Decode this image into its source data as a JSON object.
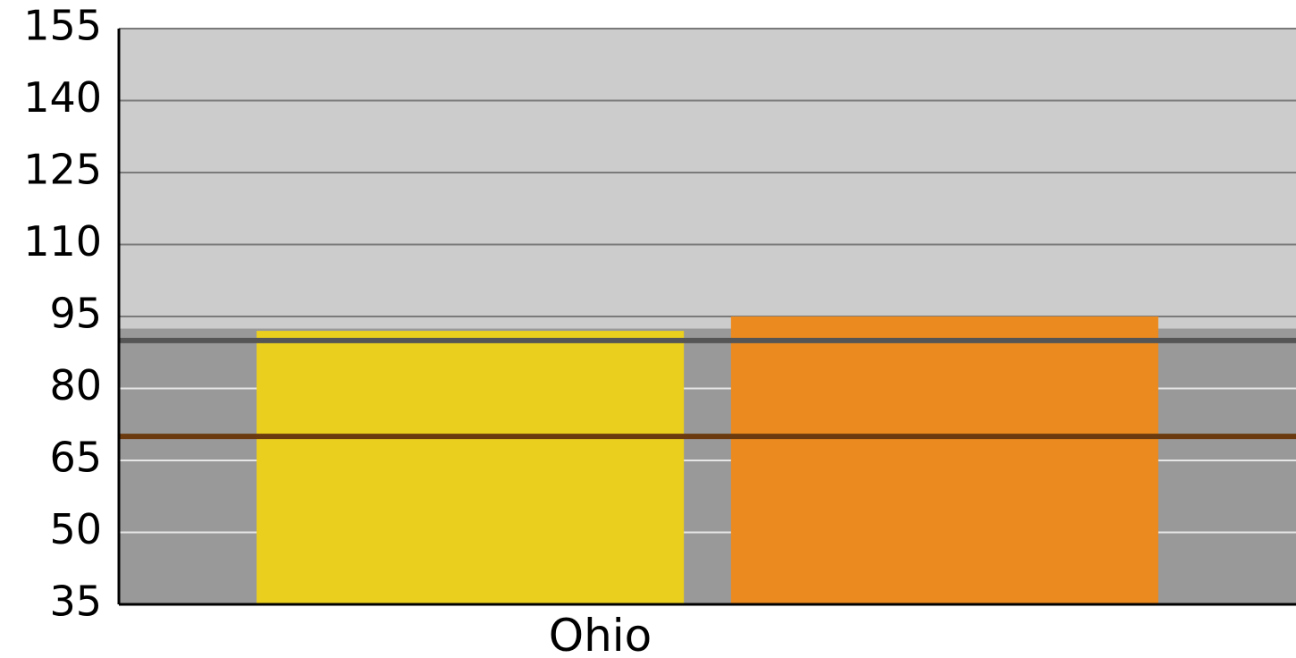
{
  "chart_data": {
    "type": "bar",
    "categories": [
      "Ohio"
    ],
    "series": [
      {
        "values": [
          92
        ],
        "color": "#EBCF1F"
      },
      {
        "values": [
          95
        ],
        "color": "#EB8A1F"
      }
    ],
    "ylim": [
      35,
      155
    ],
    "y_ticks": [
      "35",
      "50",
      "65",
      "80",
      "95",
      "110",
      "125",
      "140",
      "155"
    ],
    "background_bands": [
      {
        "from": 35,
        "to": 92.5,
        "color": "#999999"
      },
      {
        "from": 92.5,
        "to": 155,
        "color": "#CCCCCC"
      }
    ],
    "reference_lines": [
      {
        "value": 90,
        "color": "#555555"
      },
      {
        "value": 70,
        "color": "#6B3A0F"
      }
    ],
    "grid": true,
    "legend": "none"
  }
}
